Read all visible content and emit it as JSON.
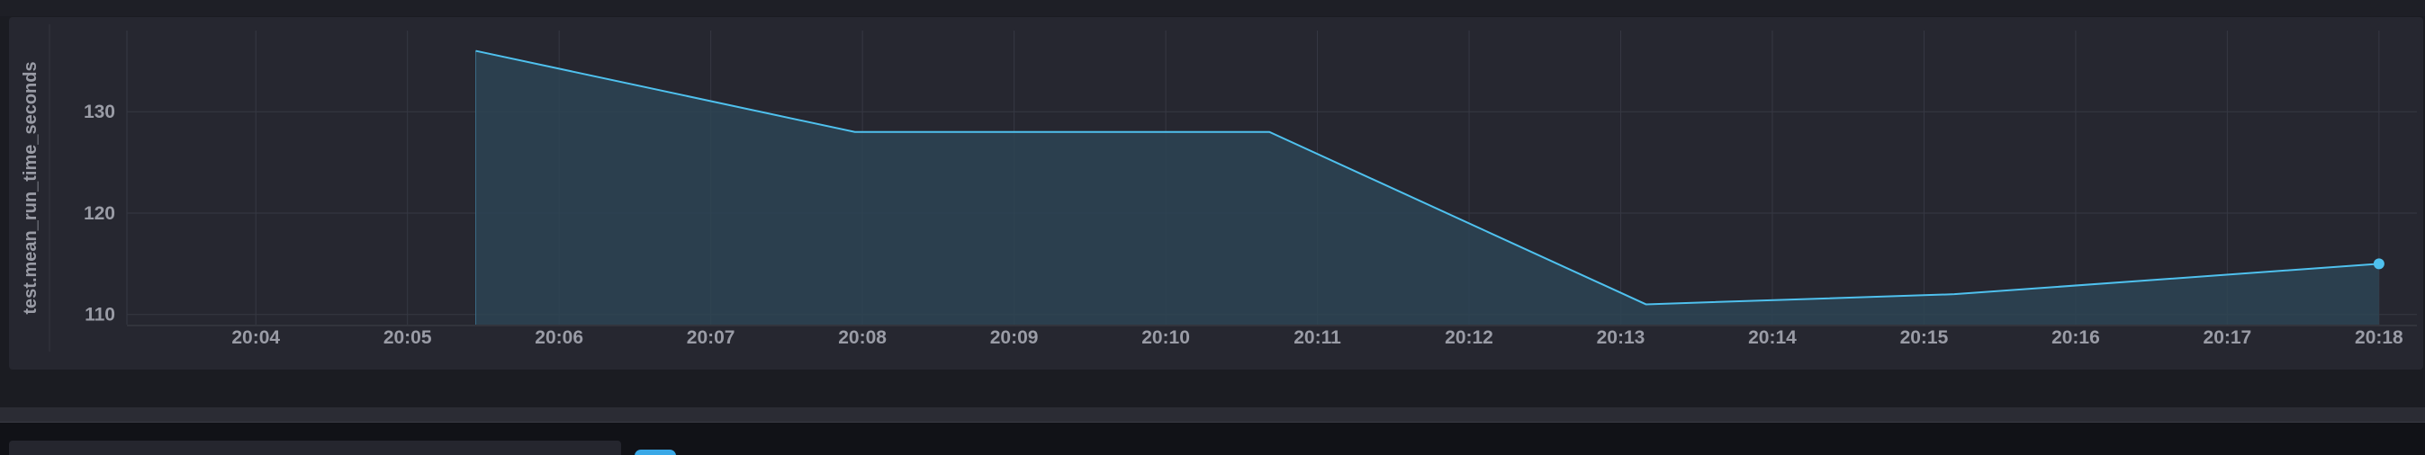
{
  "chart_data": {
    "type": "area",
    "ylabel": "test.mean_run_time_seconds",
    "xlabel": "",
    "title": "",
    "ylim": [
      109,
      138
    ],
    "y_ticks": [
      110,
      120,
      130
    ],
    "x_ticks": [
      "20:04",
      "20:05",
      "20:06",
      "20:07",
      "20:08",
      "20:09",
      "20:10",
      "20:11",
      "20:12",
      "20:13",
      "20:14",
      "20:15",
      "20:16",
      "20:17",
      "20:18"
    ],
    "x_range_minutes": [
      3.15,
      18.25
    ],
    "series": [
      {
        "color": "#4fc1ee",
        "fill": "#2d4454",
        "points": [
          {
            "x": "20:05:27",
            "y": 136.0
          },
          {
            "x": "20:07:57",
            "y": 128.0
          },
          {
            "x": "20:10:41",
            "y": 128.0
          },
          {
            "x": "20:13:10",
            "y": 111.0
          },
          {
            "x": "20:15:12",
            "y": 112.0
          },
          {
            "x": "20:18:00",
            "y": 115.0
          }
        ]
      }
    ],
    "grid": true,
    "legend": "none"
  }
}
